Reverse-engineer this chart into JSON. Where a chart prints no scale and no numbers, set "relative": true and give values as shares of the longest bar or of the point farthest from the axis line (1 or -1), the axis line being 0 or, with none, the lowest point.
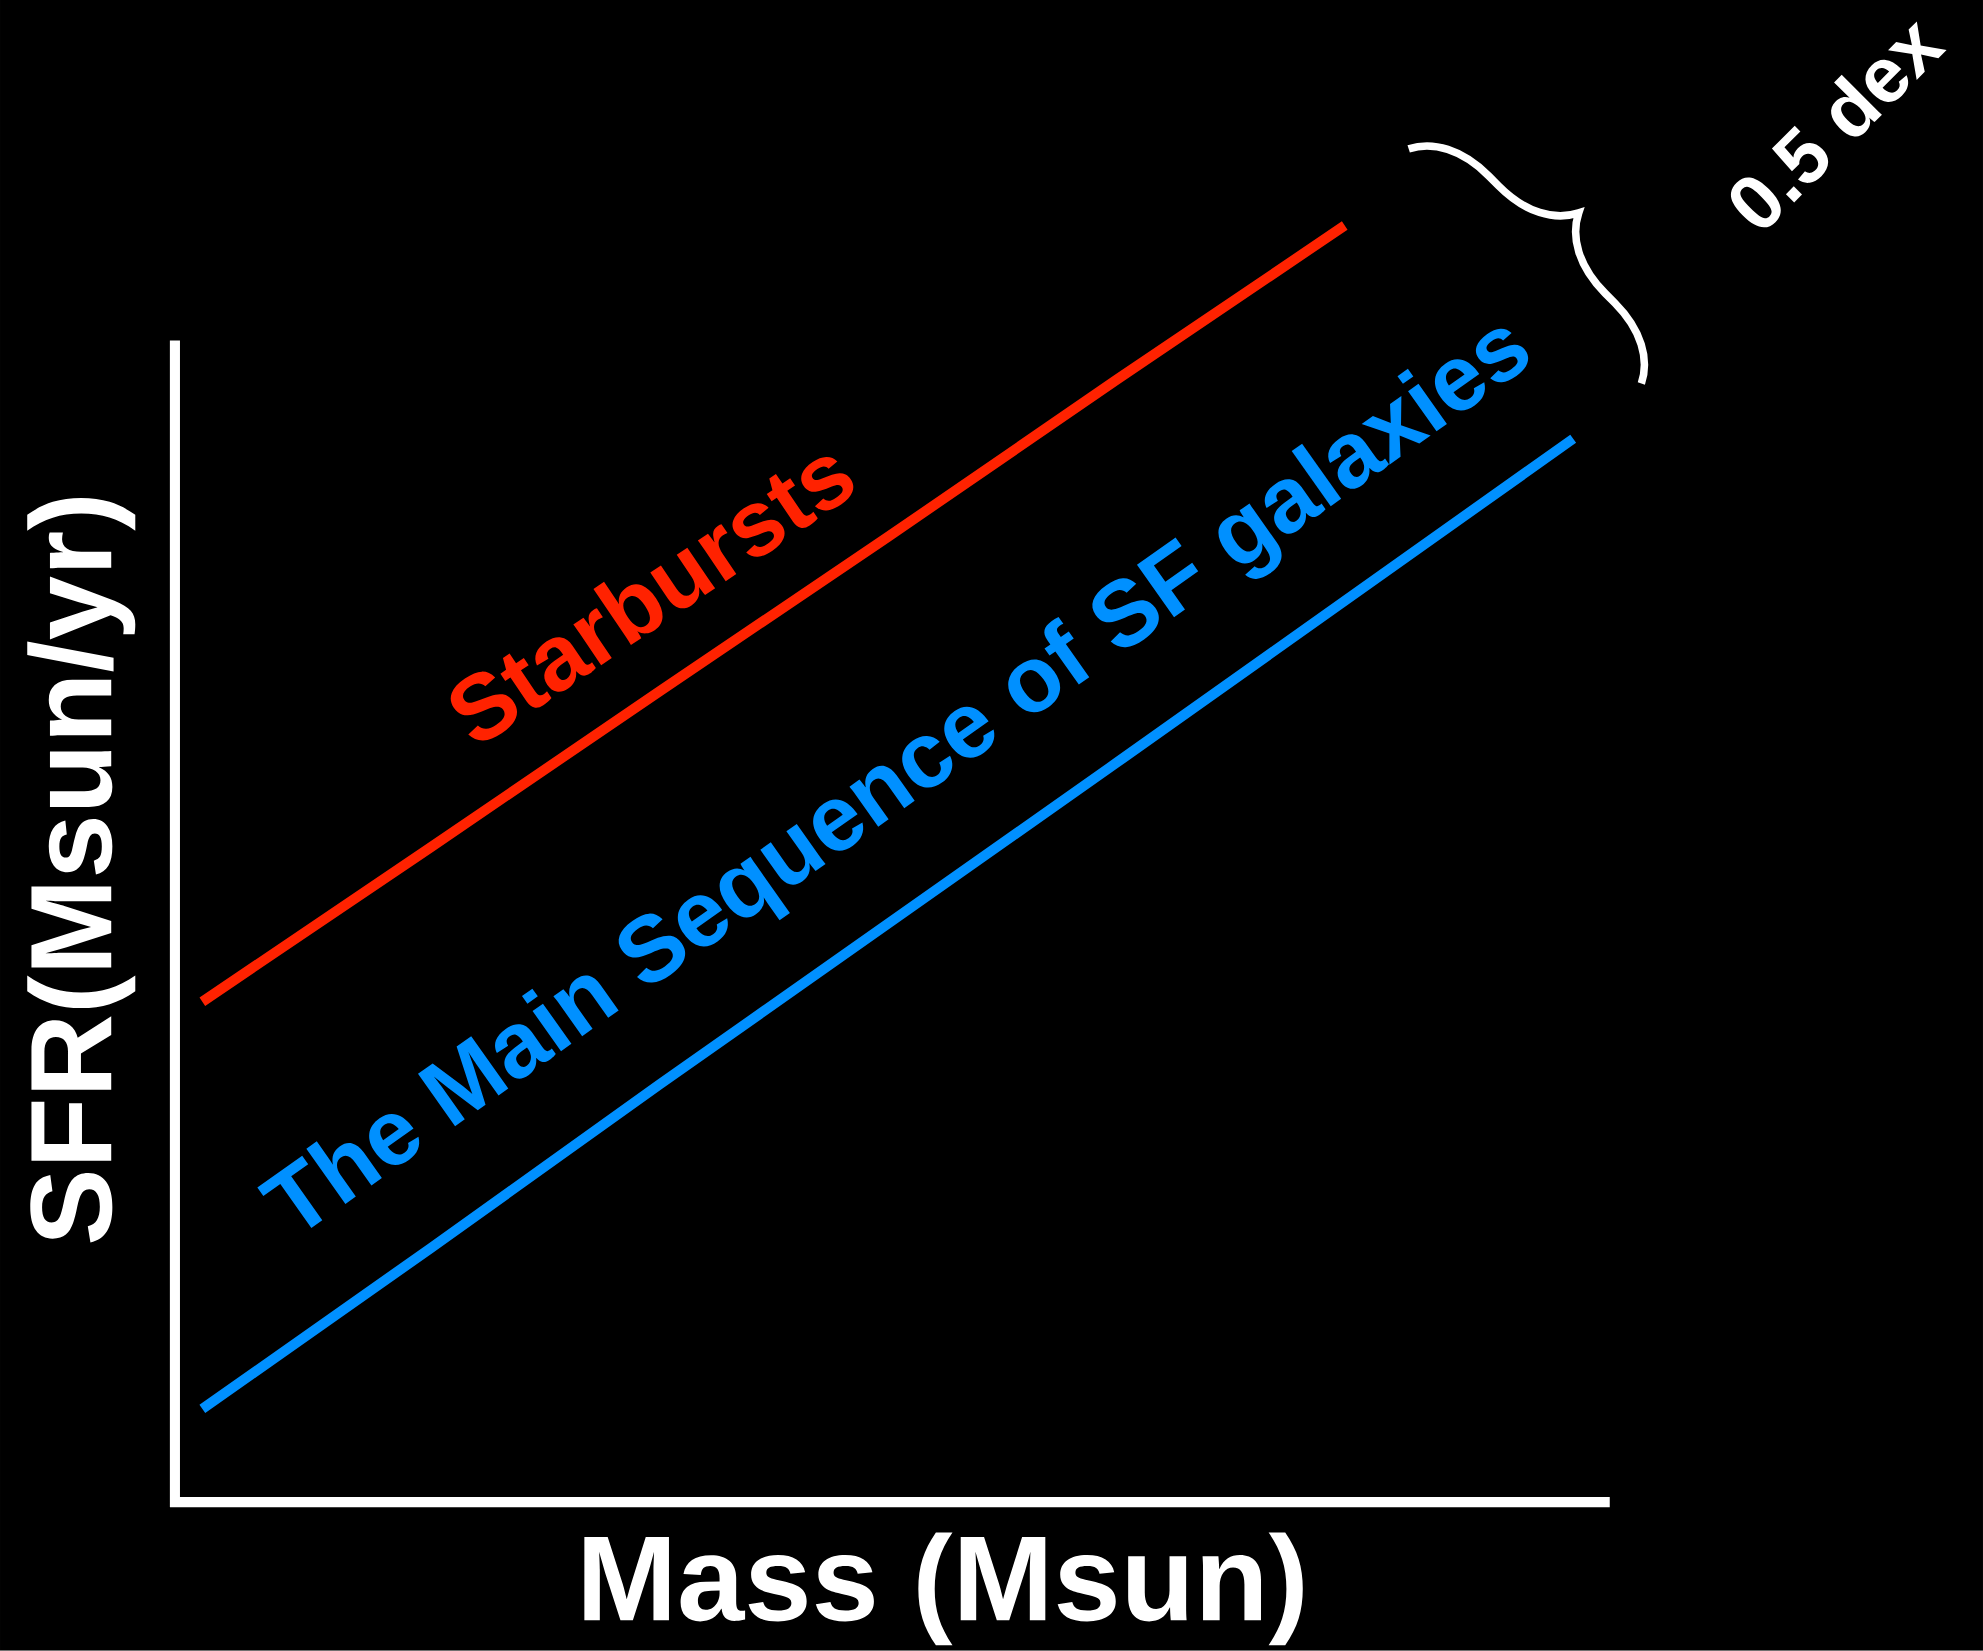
{
  "chart_data": {
    "type": "line",
    "relative": true,
    "xlabel": "Mass (Msun)",
    "ylabel": "SFR(Msun/yr)",
    "categories": [
      null,
      null,
      null,
      null,
      null,
      null,
      null
    ],
    "series": [
      {
        "name": "Starbursts",
        "color": "#ff2200",
        "values": [
          0.392,
          0.513,
          0.635,
          0.756,
          0.879,
          1.0,
          null
        ]
      },
      {
        "name": "The Main Sequence of SF galaxies",
        "color": "#0090ff",
        "values": [
          0.073,
          0.199,
          0.327,
          0.453,
          0.579,
          0.706,
          0.833
        ]
      }
    ],
    "annotations": [
      "0.5 dex"
    ]
  }
}
